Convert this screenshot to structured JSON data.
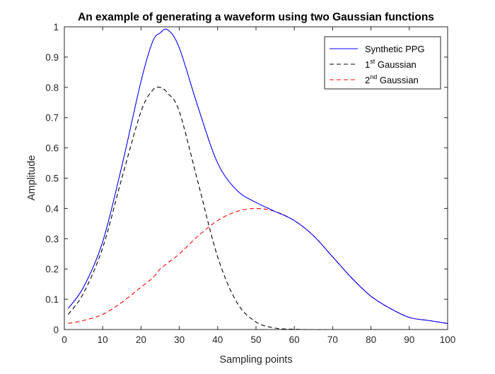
{
  "chart_data": {
    "type": "line",
    "title": "An example of generating a waveform using two Gaussian functions",
    "xlabel": "Sampling points",
    "ylabel": "Amplitude",
    "xlim": [
      0,
      100
    ],
    "ylim": [
      0,
      1
    ],
    "xticks": [
      0,
      10,
      20,
      30,
      40,
      50,
      60,
      70,
      80,
      90,
      100
    ],
    "yticks": [
      0,
      0.1,
      0.2,
      0.3,
      0.4,
      0.5,
      0.6,
      0.7,
      0.8,
      0.9,
      1
    ],
    "xtick_labels": [
      "0",
      "10",
      "20",
      "30",
      "40",
      "50",
      "60",
      "70",
      "80",
      "90",
      "100"
    ],
    "ytick_labels": [
      "0",
      "0.1",
      "0.2",
      "0.3",
      "0.4",
      "0.5",
      "0.6",
      "0.7",
      "0.8",
      "0.9",
      "1"
    ],
    "grid": false,
    "legend_position": "top-right",
    "x": [
      1,
      5,
      10,
      15,
      20,
      23,
      25,
      27,
      30,
      35,
      40,
      45,
      50,
      55,
      60,
      65,
      70,
      75,
      80,
      85,
      90,
      95,
      100
    ],
    "series": [
      {
        "name_main": "Synthetic PPG",
        "name_sup": "",
        "name_after": "",
        "color": "#0000ff",
        "dash": "solid",
        "values": [
          0.07,
          0.14,
          0.29,
          0.54,
          0.82,
          0.95,
          0.98,
          0.99,
          0.93,
          0.73,
          0.55,
          0.46,
          0.42,
          0.39,
          0.36,
          0.31,
          0.24,
          0.17,
          0.11,
          0.07,
          0.04,
          0.03,
          0.02
        ]
      },
      {
        "name_main": "1",
        "name_sup": "st",
        "name_after": " Gaussian",
        "color": "#000000",
        "dash": "dashed",
        "values": [
          0.05,
          0.12,
          0.27,
          0.5,
          0.72,
          0.79,
          0.8,
          0.78,
          0.72,
          0.48,
          0.24,
          0.09,
          0.025,
          0.005,
          0.001,
          0,
          0,
          0,
          0,
          0,
          0,
          0,
          0
        ]
      },
      {
        "name_main": "2",
        "name_sup": "nd",
        "name_after": " Gaussian",
        "color": "#ff0000",
        "dash": "dashed",
        "values": [
          0.02,
          0.03,
          0.05,
          0.09,
          0.14,
          0.17,
          0.2,
          0.22,
          0.25,
          0.31,
          0.36,
          0.39,
          0.4,
          0.39,
          0.36,
          0.31,
          0.24,
          0.17,
          0.11,
          0.07,
          0.04,
          0.03,
          0.02
        ]
      }
    ]
  }
}
